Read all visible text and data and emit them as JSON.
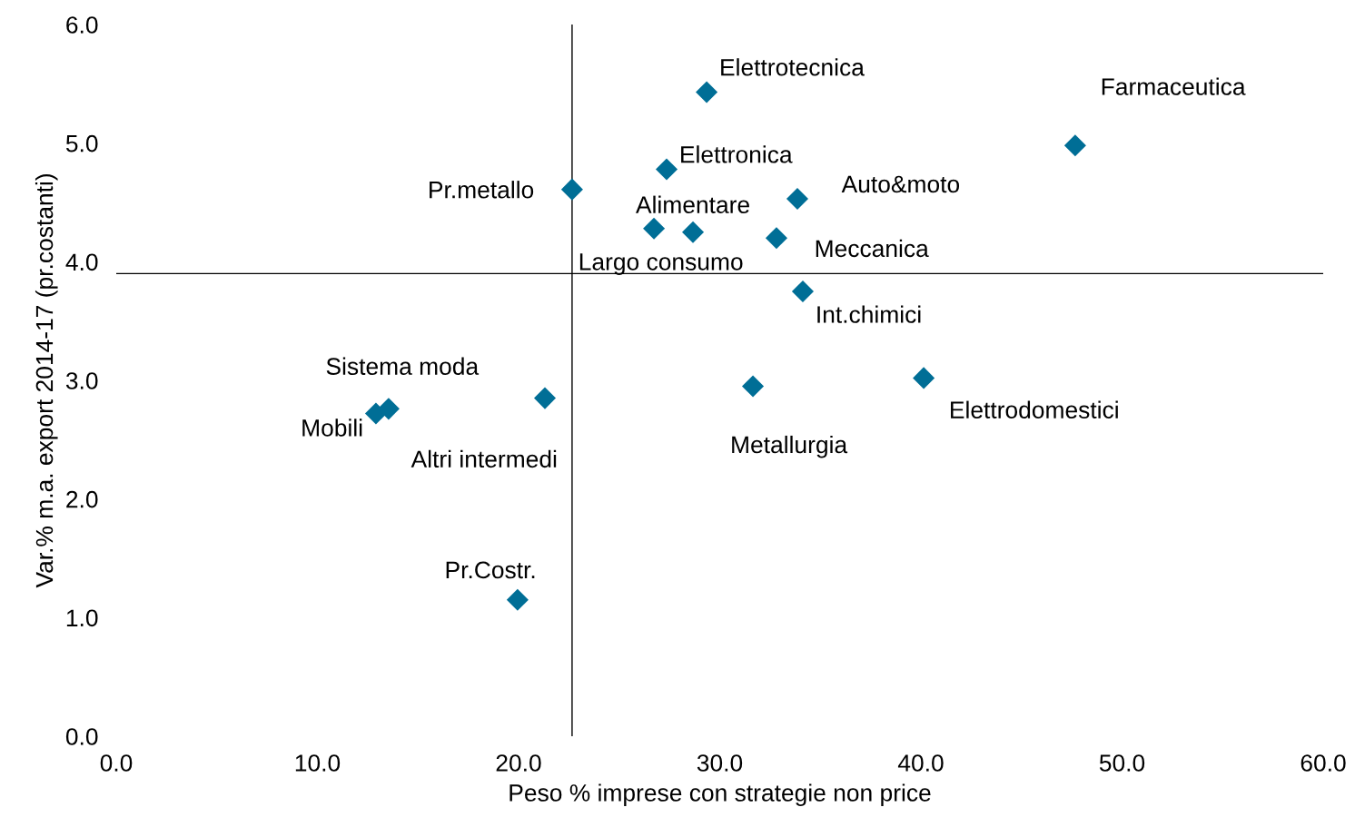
{
  "chart_data": {
    "type": "scatter",
    "xlabel": "Peso % imprese con strategie non price",
    "ylabel": "Var.% m.a. export 2014-17 (pr.costanti)",
    "series": [
      {
        "color": "#006e96",
        "x": [
          29.35,
          47.67,
          27.36,
          22.66,
          33.86,
          28.67,
          26.73,
          32.82,
          34.13,
          40.14,
          31.65,
          21.31,
          12.91,
          13.54,
          19.95
        ],
        "values": [
          5.43,
          4.98,
          4.78,
          4.61,
          4.53,
          4.25,
          4.28,
          4.2,
          3.75,
          3.02,
          2.95,
          2.85,
          2.72,
          2.76,
          1.15
        ]
      }
    ],
    "marker": "diamond",
    "grid": false,
    "xlim": [
      0,
      60
    ],
    "xticks": [
      {
        "value": 0,
        "label": "0.0"
      },
      {
        "value": 10,
        "label": "10.0"
      },
      {
        "value": 20,
        "label": "20.0"
      },
      {
        "value": 30,
        "label": "30.0"
      },
      {
        "value": 40,
        "label": "40.0"
      },
      {
        "value": 50,
        "label": "50.0"
      },
      {
        "value": 60,
        "label": "60.0"
      }
    ],
    "ylim": [
      0,
      6
    ],
    "yticks": [
      {
        "value": 0,
        "label": "0.0"
      },
      {
        "value": 1,
        "label": "1.0"
      },
      {
        "value": 2,
        "label": "2.0"
      },
      {
        "value": 3,
        "label": "3.0"
      },
      {
        "value": 4,
        "label": "4.0"
      },
      {
        "value": 5,
        "label": "5.0"
      },
      {
        "value": 6,
        "label": "6.0"
      }
    ],
    "ref_lines": [
      {
        "axis": "x",
        "value": 22.66,
        "color": "#000000"
      },
      {
        "axis": "y",
        "value": 3.9,
        "color": "#000000"
      }
    ],
    "annotations": [
      {
        "text": "Elettrotecnica",
        "x": 29.35,
        "y": 5.43
      },
      {
        "text": "Farmaceutica",
        "x": 47.67,
        "y": 4.98
      },
      {
        "text": "Elettronica",
        "x": 27.36,
        "y": 4.78
      },
      {
        "text": "Pr.metallo",
        "x": 22.66,
        "y": 4.61
      },
      {
        "text": "Auto&moto",
        "x": 33.86,
        "y": 4.53
      },
      {
        "text": "Alimentare",
        "x": 28.67,
        "y": 4.25
      },
      {
        "text": "Largo consumo",
        "x": 26.73,
        "y": 4.28
      },
      {
        "text": "Meccanica",
        "x": 32.82,
        "y": 4.2
      },
      {
        "text": "Int.chimici",
        "x": 34.13,
        "y": 3.75
      },
      {
        "text": "Elettrodomestici",
        "x": 40.14,
        "y": 3.02
      },
      {
        "text": "Metallurgia",
        "x": 31.65,
        "y": 2.95
      },
      {
        "text": "Altri intermedi",
        "x": 21.31,
        "y": 2.85
      },
      {
        "text": "Mobili",
        "x": 12.91,
        "y": 2.72
      },
      {
        "text": "Sistema moda",
        "x": 13.54,
        "y": 2.76
      },
      {
        "text": "Pr.Costr.",
        "x": 19.95,
        "y": 1.15
      }
    ]
  }
}
